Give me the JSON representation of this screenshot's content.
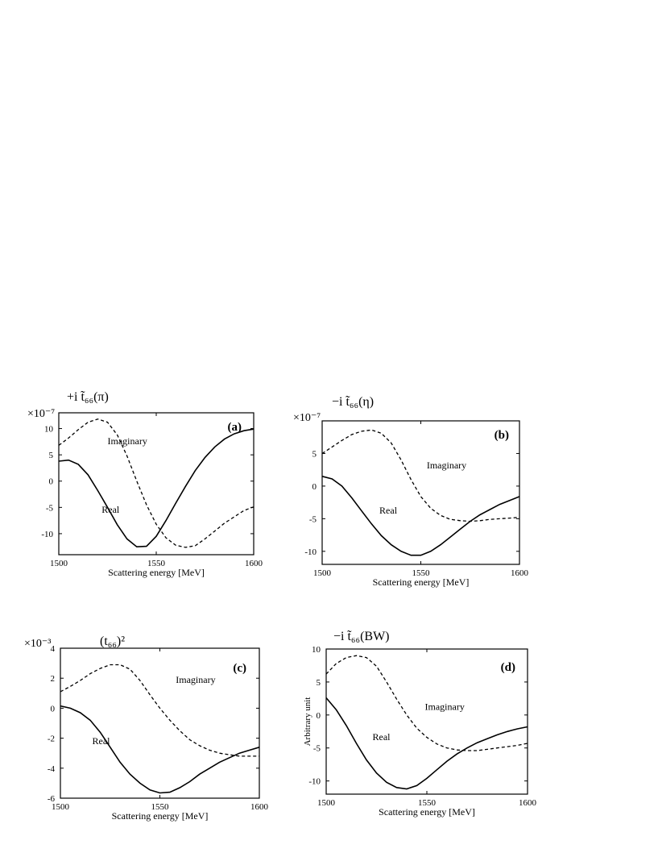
{
  "chart_data": [
    {
      "type": "line",
      "panel_label": "(a)",
      "title": "+i t̃₆₆(π)",
      "y_multiplier": "×10⁻⁷",
      "xlabel": "Scattering energy [MeV]",
      "ylabel": "",
      "xlim": [
        1500,
        1600
      ],
      "ylim": [
        -14,
        13
      ],
      "x_ticks": [
        1500,
        1550,
        1600
      ],
      "y_ticks": [
        -10,
        -5,
        0,
        5,
        10
      ],
      "grid": false,
      "annotations": [
        {
          "text": "Imaginary",
          "x": 1525,
          "y": 7
        },
        {
          "text": "Real",
          "x": 1522,
          "y": -6
        }
      ],
      "series": [
        {
          "name": "Real",
          "style": "solid",
          "x": [
            1500,
            1505,
            1510,
            1515,
            1520,
            1525,
            1530,
            1535,
            1540,
            1545,
            1550,
            1555,
            1560,
            1565,
            1570,
            1575,
            1580,
            1585,
            1590,
            1595,
            1600
          ],
          "y": [
            3.8,
            4.0,
            3.2,
            1.2,
            -1.8,
            -5.0,
            -8.3,
            -11.0,
            -12.5,
            -12.4,
            -10.5,
            -7.5,
            -4.2,
            -1.0,
            2.0,
            4.5,
            6.5,
            8.0,
            9.0,
            9.6,
            9.9
          ]
        },
        {
          "name": "Imaginary",
          "style": "dashed",
          "x": [
            1500,
            1505,
            1510,
            1515,
            1520,
            1525,
            1530,
            1535,
            1540,
            1545,
            1550,
            1555,
            1560,
            1565,
            1570,
            1575,
            1580,
            1585,
            1590,
            1595,
            1600
          ],
          "y": [
            6.8,
            8.2,
            9.8,
            11.2,
            11.8,
            11.2,
            8.8,
            4.8,
            0.0,
            -4.5,
            -8.2,
            -10.8,
            -12.2,
            -12.6,
            -12.3,
            -11.0,
            -9.5,
            -8.0,
            -6.8,
            -5.6,
            -4.9
          ]
        }
      ]
    },
    {
      "type": "line",
      "panel_label": "(b)",
      "title": "−i t̃₆₆(η)",
      "y_multiplier": "×10⁻⁷",
      "xlabel": "Scattering energy [MeV]",
      "ylabel": "",
      "xlim": [
        1500,
        1600
      ],
      "ylim": [
        -12,
        10
      ],
      "x_ticks": [
        1500,
        1550,
        1600
      ],
      "y_ticks": [
        -10,
        -5,
        0,
        5
      ],
      "grid": false,
      "annotations": [
        {
          "text": "Imaginary",
          "x": 1553,
          "y": 2.7
        },
        {
          "text": "Real",
          "x": 1529,
          "y": -4.2
        }
      ],
      "series": [
        {
          "name": "Real",
          "style": "solid",
          "x": [
            1500,
            1505,
            1510,
            1515,
            1520,
            1525,
            1530,
            1535,
            1540,
            1545,
            1550,
            1555,
            1560,
            1565,
            1570,
            1575,
            1580,
            1585,
            1590,
            1595,
            1600
          ],
          "y": [
            1.5,
            1.1,
            0.0,
            -1.8,
            -3.8,
            -5.8,
            -7.6,
            -9.0,
            -10.0,
            -10.6,
            -10.6,
            -10.0,
            -9.0,
            -7.8,
            -6.6,
            -5.4,
            -4.4,
            -3.6,
            -2.8,
            -2.2,
            -1.6
          ]
        },
        {
          "name": "Imaginary",
          "style": "dashed",
          "x": [
            1500,
            1505,
            1510,
            1515,
            1520,
            1525,
            1530,
            1535,
            1540,
            1545,
            1550,
            1555,
            1560,
            1565,
            1570,
            1575,
            1580,
            1585,
            1590,
            1595,
            1600
          ],
          "y": [
            5.0,
            6.0,
            7.0,
            7.9,
            8.4,
            8.6,
            8.1,
            6.6,
            4.0,
            1.0,
            -1.6,
            -3.4,
            -4.5,
            -5.1,
            -5.3,
            -5.4,
            -5.3,
            -5.1,
            -5.0,
            -4.9,
            -4.8
          ]
        }
      ]
    },
    {
      "type": "line",
      "panel_label": "(c)",
      "title": "(t₆₆)²",
      "y_multiplier": "×10⁻³",
      "xlabel": "Scattering energy [MeV]",
      "ylabel": "",
      "xlim": [
        1500,
        1600
      ],
      "ylim": [
        -6,
        4
      ],
      "x_ticks": [
        1500,
        1550,
        1600
      ],
      "y_ticks": [
        -6,
        -4,
        -2,
        0,
        2,
        4
      ],
      "grid": false,
      "annotations": [
        {
          "text": "Imaginary",
          "x": 1558,
          "y": 1.7
        },
        {
          "text": "Real",
          "x": 1516,
          "y": -2.4
        }
      ],
      "series": [
        {
          "name": "Real",
          "style": "solid",
          "x": [
            1500,
            1505,
            1510,
            1515,
            1520,
            1525,
            1530,
            1535,
            1540,
            1545,
            1550,
            1555,
            1560,
            1565,
            1570,
            1575,
            1580,
            1585,
            1590,
            1595,
            1600
          ],
          "y": [
            0.15,
            0.0,
            -0.3,
            -0.8,
            -1.6,
            -2.6,
            -3.6,
            -4.4,
            -5.0,
            -5.45,
            -5.65,
            -5.6,
            -5.3,
            -4.9,
            -4.4,
            -4.0,
            -3.6,
            -3.3,
            -3.0,
            -2.8,
            -2.6
          ]
        },
        {
          "name": "Imaginary",
          "style": "dashed",
          "x": [
            1500,
            1505,
            1510,
            1515,
            1520,
            1525,
            1530,
            1535,
            1540,
            1545,
            1550,
            1555,
            1560,
            1565,
            1570,
            1575,
            1580,
            1585,
            1590,
            1595,
            1600
          ],
          "y": [
            1.1,
            1.45,
            1.85,
            2.3,
            2.65,
            2.9,
            2.9,
            2.6,
            1.85,
            0.9,
            0.0,
            -0.8,
            -1.5,
            -2.1,
            -2.5,
            -2.8,
            -3.0,
            -3.1,
            -3.2,
            -3.2,
            -3.2
          ]
        }
      ]
    },
    {
      "type": "line",
      "panel_label": "(d)",
      "title": "−i t̃₆₆(BW)",
      "y_multiplier": "",
      "xlabel": "Scattering energy [MeV]",
      "ylabel": "Arbitrary unit",
      "xlim": [
        1500,
        1600
      ],
      "ylim": [
        -12,
        10
      ],
      "x_ticks": [
        1500,
        1550,
        1600
      ],
      "y_ticks": [
        -10,
        -5,
        0,
        5,
        10
      ],
      "grid": false,
      "annotations": [
        {
          "text": "Imaginary",
          "x": 1549,
          "y": 0.8
        },
        {
          "text": "Real",
          "x": 1523,
          "y": -3.8
        }
      ],
      "series": [
        {
          "name": "Real",
          "style": "solid",
          "x": [
            1500,
            1505,
            1510,
            1515,
            1520,
            1525,
            1530,
            1535,
            1540,
            1545,
            1550,
            1555,
            1560,
            1565,
            1570,
            1575,
            1580,
            1585,
            1590,
            1595,
            1600
          ],
          "y": [
            2.6,
            0.8,
            -1.6,
            -4.3,
            -6.8,
            -8.8,
            -10.2,
            -11.0,
            -11.2,
            -10.7,
            -9.6,
            -8.3,
            -7.0,
            -5.9,
            -5.0,
            -4.2,
            -3.6,
            -3.0,
            -2.5,
            -2.1,
            -1.8
          ]
        },
        {
          "name": "Imaginary",
          "style": "dashed",
          "x": [
            1500,
            1505,
            1510,
            1515,
            1520,
            1525,
            1530,
            1535,
            1540,
            1545,
            1550,
            1555,
            1560,
            1565,
            1570,
            1575,
            1580,
            1585,
            1590,
            1595,
            1600
          ],
          "y": [
            6.2,
            7.8,
            8.7,
            9.0,
            8.7,
            7.4,
            5.0,
            2.4,
            0.0,
            -2.0,
            -3.4,
            -4.4,
            -5.0,
            -5.3,
            -5.4,
            -5.4,
            -5.2,
            -5.0,
            -4.8,
            -4.6,
            -4.3
          ]
        }
      ]
    }
  ]
}
